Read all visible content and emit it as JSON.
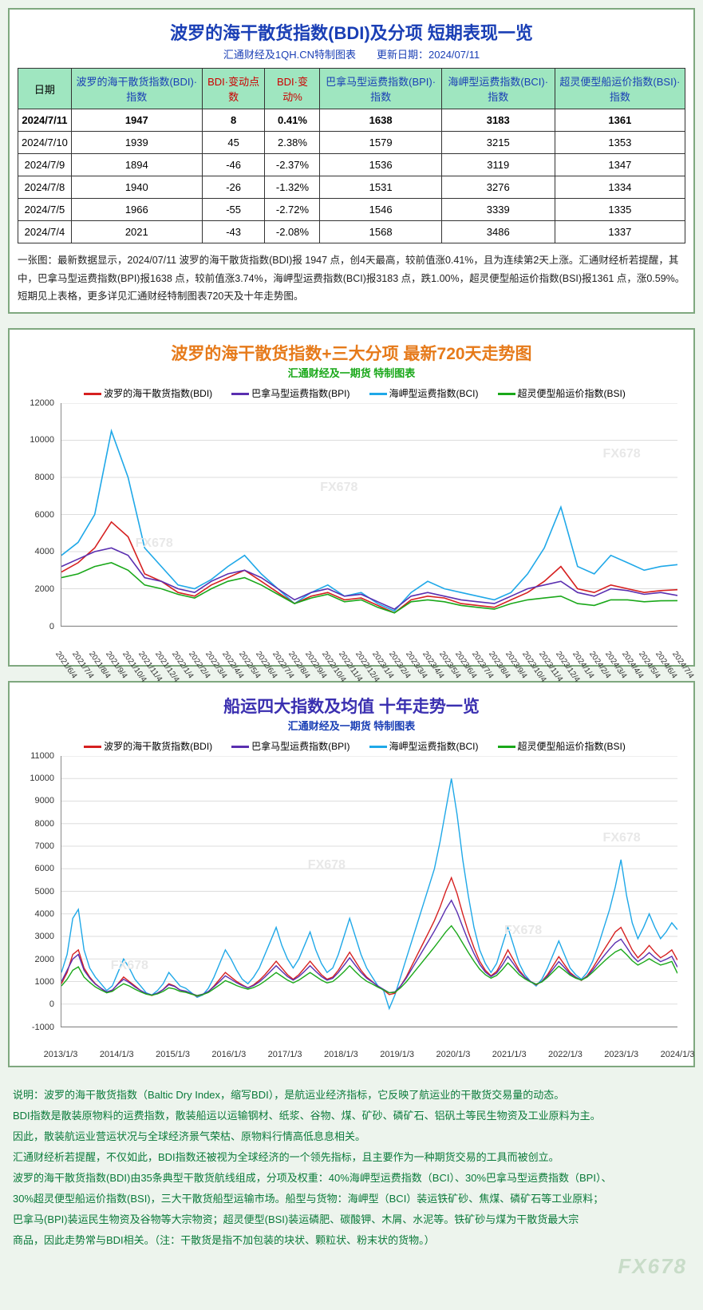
{
  "colors": {
    "page_bg": "#edf4ed",
    "panel_border": "#7fa87f",
    "title_blue": "#1a3fb5",
    "header_bg": "#9fe6c0",
    "header_red": "#c00",
    "bdi": "#d62020",
    "bpi": "#5a2fb0",
    "bci": "#1fa8e8",
    "bsi": "#1aa81a",
    "chart1_title": "#e67a1a",
    "chart1_sub": "#1aa81a",
    "chart2_title": "#3a2fb0",
    "chart2_sub": "#1a3fb5",
    "footer_green": "#0a7a3a",
    "watermark": "#e8e8e8"
  },
  "table_panel": {
    "title": "波罗的海干散货指数(BDI)及分项 短期表现一览",
    "subtitle": "汇通财经及1QH.CN特制图表　　更新日期：2024/07/11",
    "headers": [
      {
        "label": "日期",
        "cls": ""
      },
      {
        "label": "波罗的海干散货指数(BDI)·指数",
        "cls": "blue"
      },
      {
        "label": "BDI·变动点数",
        "cls": "red"
      },
      {
        "label": "BDI·变动%",
        "cls": "red"
      },
      {
        "label": "巴拿马型运费指数(BPI)·指数",
        "cls": "blue"
      },
      {
        "label": "海岬型运费指数(BCI)·指数",
        "cls": "blue"
      },
      {
        "label": "超灵便型船运价指数(BSI)·指数",
        "cls": "blue"
      }
    ],
    "rows": [
      {
        "bold": true,
        "cells": [
          "2024/7/11",
          "1947",
          "8",
          "0.41%",
          "1638",
          "3183",
          "1361"
        ]
      },
      {
        "bold": false,
        "cells": [
          "2024/7/10",
          "1939",
          "45",
          "2.38%",
          "1579",
          "3215",
          "1353"
        ]
      },
      {
        "bold": false,
        "cells": [
          "2024/7/9",
          "1894",
          "-46",
          "-2.37%",
          "1536",
          "3119",
          "1347"
        ]
      },
      {
        "bold": false,
        "cells": [
          "2024/7/8",
          "1940",
          "-26",
          "-1.32%",
          "1531",
          "3276",
          "1334"
        ]
      },
      {
        "bold": false,
        "cells": [
          "2024/7/5",
          "1966",
          "-55",
          "-2.72%",
          "1546",
          "3339",
          "1335"
        ]
      },
      {
        "bold": false,
        "cells": [
          "2024/7/4",
          "2021",
          "-43",
          "-2.08%",
          "1568",
          "3486",
          "1337"
        ]
      }
    ],
    "summary": "一张图：最新数据显示，2024/07/11 波罗的海干散货指数(BDI)报 1947 点，创4天最高，较前值涨0.41%，且为连续第2天上涨。汇通财经析若提醒，其中，巴拿马型运费指数(BPI)报1638 点，较前值涨3.74%，海岬型运费指数(BCI)报3183 点，跌1.00%，超灵便型船运价指数(BSI)报1361 点，涨0.59%。短期见上表格，更多详见汇通财经特制图表720天及十年走势图。"
  },
  "chart720": {
    "title": "波罗的海干散货指数+三大分项  最新720天走势图",
    "subtitle": "汇通财经及一期货 特制图表",
    "legend": [
      {
        "label": "波罗的海干散货指数(BDI)",
        "color": "#d62020"
      },
      {
        "label": "巴拿马型运费指数(BPI)",
        "color": "#5a2fb0"
      },
      {
        "label": "海岬型运费指数(BCI)",
        "color": "#1fa8e8"
      },
      {
        "label": "超灵便型船运价指数(BSI)",
        "color": "#1aa81a"
      }
    ],
    "ylim": [
      0,
      12000
    ],
    "ytick_step": 2000,
    "yticks": [
      0,
      2000,
      4000,
      6000,
      8000,
      10000,
      12000
    ],
    "xticks": [
      "2021/6/4",
      "2021/7/4",
      "2021/8/4",
      "2021/9/4",
      "2021/10/4",
      "2021/11/4",
      "2021/12/4",
      "2022/1/4",
      "2022/2/4",
      "2022/3/4",
      "2022/4/4",
      "2022/5/4",
      "2022/6/4",
      "2022/7/4",
      "2022/8/4",
      "2022/9/4",
      "2022/10/4",
      "2022/11/4",
      "2022/12/4",
      "2023/1/4",
      "2023/2/4",
      "2023/3/4",
      "2023/4/4",
      "2023/5/4",
      "2023/6/4",
      "2023/7/4",
      "2023/8/4",
      "2023/9/4",
      "2023/10/4",
      "2023/11/4",
      "2023/12/4",
      "2024/1/4",
      "2024/2/4",
      "2024/3/4",
      "2024/4/4",
      "2024/5/4",
      "2024/6/4",
      "2024/7/4"
    ],
    "series": {
      "bci": [
        3800,
        4500,
        6000,
        10500,
        8000,
        4200,
        3200,
        2200,
        2000,
        2500,
        3200,
        3800,
        2800,
        2000,
        1200,
        1800,
        2200,
        1600,
        1800,
        1200,
        800,
        1800,
        2400,
        2000,
        1800,
        1600,
        1400,
        1800,
        2800,
        4200,
        6400,
        3200,
        2800,
        3800,
        3400,
        3000,
        3200,
        3300
      ],
      "bdi": [
        2900,
        3400,
        4200,
        5600,
        4800,
        2800,
        2400,
        1800,
        1600,
        2200,
        2600,
        3000,
        2400,
        1800,
        1200,
        1600,
        1800,
        1400,
        1500,
        1100,
        700,
        1400,
        1600,
        1500,
        1200,
        1100,
        1000,
        1400,
        1800,
        2400,
        3200,
        2000,
        1800,
        2200,
        2000,
        1800,
        1900,
        1947
      ],
      "bpi": [
        3200,
        3600,
        4000,
        4200,
        3800,
        2600,
        2400,
        2000,
        1800,
        2400,
        2800,
        3000,
        2600,
        2000,
        1400,
        1800,
        2000,
        1600,
        1700,
        1300,
        900,
        1600,
        1800,
        1600,
        1400,
        1300,
        1200,
        1600,
        2000,
        2200,
        2400,
        1800,
        1600,
        2000,
        1900,
        1700,
        1800,
        1638
      ],
      "bsi": [
        2600,
        2800,
        3200,
        3400,
        3000,
        2200,
        2000,
        1700,
        1500,
        2000,
        2400,
        2600,
        2200,
        1700,
        1200,
        1500,
        1700,
        1300,
        1400,
        1000,
        700,
        1300,
        1400,
        1300,
        1100,
        1000,
        900,
        1200,
        1400,
        1500,
        1600,
        1200,
        1100,
        1400,
        1400,
        1300,
        1350,
        1361
      ]
    },
    "line_width": 1.6,
    "watermark": "FX678"
  },
  "chart10y": {
    "title": "船运四大指数及均值 十年走势一览",
    "subtitle": "汇通财经及一期货 特制图表",
    "legend": [
      {
        "label": "波罗的海干散货指数(BDI)",
        "color": "#d62020"
      },
      {
        "label": "巴拿马型运费指数(BPI)",
        "color": "#5a2fb0"
      },
      {
        "label": "海岬型运费指数(BCI)",
        "color": "#1fa8e8"
      },
      {
        "label": "超灵便型船运价指数(BSI)",
        "color": "#1aa81a"
      }
    ],
    "ylim": [
      -1000,
      11000
    ],
    "ytick_step": 1000,
    "yticks": [
      -1000,
      0,
      1000,
      2000,
      3000,
      4000,
      5000,
      6000,
      7000,
      8000,
      9000,
      10000,
      11000
    ],
    "xticks": [
      "2013/1/3",
      "2014/1/3",
      "2015/1/3",
      "2016/1/3",
      "2017/1/3",
      "2018/1/3",
      "2019/1/3",
      "2020/1/3",
      "2021/1/3",
      "2022/1/3",
      "2023/1/3",
      "2024/1/3"
    ],
    "series_points": 120,
    "series": {
      "bci": [
        1400,
        2200,
        3800,
        4200,
        2400,
        1600,
        1200,
        900,
        600,
        800,
        1400,
        2000,
        1600,
        1100,
        800,
        500,
        400,
        600,
        900,
        1400,
        1100,
        800,
        700,
        500,
        300,
        400,
        700,
        1200,
        1800,
        2400,
        2000,
        1500,
        1100,
        900,
        1200,
        1600,
        2200,
        2800,
        3400,
        2600,
        2000,
        1600,
        2000,
        2600,
        3200,
        2400,
        1800,
        1400,
        1600,
        2200,
        3000,
        3800,
        3000,
        2200,
        1600,
        1200,
        800,
        600,
        -200,
        400,
        1200,
        2000,
        2800,
        3600,
        4400,
        5200,
        6000,
        7200,
        8600,
        10000,
        8400,
        6400,
        4800,
        3400,
        2400,
        1800,
        1400,
        1800,
        2600,
        3400,
        2600,
        1800,
        1300,
        1000,
        800,
        1100,
        1600,
        2200,
        2800,
        2200,
        1600,
        1300,
        1100,
        1400,
        1900,
        2600,
        3400,
        4200,
        5200,
        6400,
        4800,
        3600,
        2900,
        3400,
        4000,
        3400,
        2900,
        3200,
        3600,
        3300
      ],
      "bdi": [
        900,
        1400,
        2200,
        2400,
        1600,
        1200,
        900,
        700,
        500,
        600,
        900,
        1200,
        1000,
        800,
        600,
        450,
        380,
        480,
        650,
        900,
        800,
        620,
        560,
        450,
        350,
        420,
        550,
        800,
        1100,
        1400,
        1200,
        1000,
        850,
        720,
        850,
        1050,
        1300,
        1600,
        1900,
        1600,
        1300,
        1100,
        1300,
        1600,
        1900,
        1600,
        1300,
        1100,
        1200,
        1500,
        1900,
        2300,
        1900,
        1500,
        1200,
        1000,
        780,
        620,
        420,
        480,
        800,
        1200,
        1700,
        2200,
        2700,
        3200,
        3700,
        4300,
        5000,
        5600,
        4900,
        4000,
        3200,
        2500,
        1900,
        1500,
        1250,
        1450,
        1900,
        2400,
        1950,
        1500,
        1200,
        1000,
        850,
        1000,
        1300,
        1700,
        2100,
        1750,
        1400,
        1200,
        1050,
        1250,
        1600,
        2000,
        2400,
        2800,
        3200,
        3400,
        2900,
        2400,
        2050,
        2300,
        2600,
        2300,
        2050,
        2200,
        2400,
        1947
      ],
      "bpi": [
        1000,
        1500,
        2000,
        2200,
        1500,
        1150,
        880,
        700,
        540,
        620,
        880,
        1100,
        950,
        760,
        600,
        470,
        400,
        490,
        640,
        860,
        780,
        620,
        570,
        470,
        380,
        440,
        560,
        770,
        1000,
        1250,
        1100,
        940,
        820,
        720,
        820,
        980,
        1200,
        1450,
        1700,
        1450,
        1220,
        1060,
        1220,
        1450,
        1700,
        1450,
        1220,
        1060,
        1140,
        1400,
        1720,
        2050,
        1720,
        1400,
        1150,
        980,
        800,
        650,
        500,
        540,
        800,
        1140,
        1560,
        1980,
        2400,
        2820,
        3240,
        3700,
        4200,
        4600,
        4080,
        3420,
        2800,
        2240,
        1760,
        1420,
        1220,
        1380,
        1720,
        2120,
        1780,
        1420,
        1180,
        1000,
        880,
        1000,
        1240,
        1560,
        1880,
        1620,
        1340,
        1180,
        1060,
        1220,
        1500,
        1820,
        2140,
        2440,
        2720,
        2880,
        2520,
        2140,
        1880,
        2060,
        2280,
        2060,
        1880,
        1980,
        2120,
        1638
      ],
      "bsi": [
        800,
        1100,
        1500,
        1650,
        1200,
        960,
        760,
        620,
        500,
        560,
        740,
        900,
        800,
        660,
        540,
        440,
        390,
        450,
        560,
        720,
        670,
        560,
        520,
        440,
        370,
        420,
        510,
        680,
        850,
        1040,
        940,
        820,
        730,
        660,
        730,
        850,
        1020,
        1210,
        1400,
        1230,
        1060,
        940,
        1060,
        1230,
        1400,
        1230,
        1060,
        940,
        1000,
        1200,
        1440,
        1700,
        1440,
        1200,
        1010,
        890,
        750,
        630,
        500,
        520,
        720,
        980,
        1290,
        1600,
        1910,
        2220,
        2530,
        2860,
        3200,
        3470,
        3120,
        2700,
        2290,
        1900,
        1550,
        1300,
        1150,
        1270,
        1520,
        1820,
        1570,
        1300,
        1120,
        980,
        880,
        980,
        1180,
        1430,
        1680,
        1490,
        1280,
        1150,
        1060,
        1190,
        1410,
        1650,
        1890,
        2110,
        2310,
        2430,
        2190,
        1920,
        1730,
        1860,
        2010,
        1860,
        1730,
        1800,
        1890,
        1361
      ]
    },
    "line_width": 1.4,
    "watermark": "FX678"
  },
  "footer": {
    "lines": [
      "说明：波罗的海干散货指数（Baltic Dry Index，缩写BDI），是航运业经济指标，它反映了航运业的干散货交易量的动态。",
      "BDI指数是散装原物料的运费指数，散装船运以运输钢材、纸浆、谷物、煤、矿砂、磷矿石、铝矾土等民生物资及工业原料为主。",
      "因此，散装航运业营运状况与全球经济景气荣枯、原物料行情高低息息相关。",
      "汇通财经析若提醒，不仅如此，BDI指数还被视为全球经济的一个领先指标，且主要作为一种期货交易的工具而被创立。",
      "波罗的海干散货指数(BDI)由35条典型干散货航线组成，分项及权重：40%海岬型运费指数（BCI）、30%巴拿马型运费指数（BPI）、",
      "30%超灵便型船运价指数(BSI)，三大干散货船型运输市场。船型与货物：海岬型（BCI）装运铁矿砂、焦煤、磷矿石等工业原料；",
      "巴拿马(BPI)装运民生物资及谷物等大宗物资；超灵便型(BSI)装运磷肥、碳酸钾、木屑、水泥等。铁矿砂与煤为干散货最大宗",
      "商品，因此走势常与BDI相关。（注：干散货是指不加包装的块状、颗粒状、粉末状的货物。）"
    ],
    "logo": "FX678"
  }
}
